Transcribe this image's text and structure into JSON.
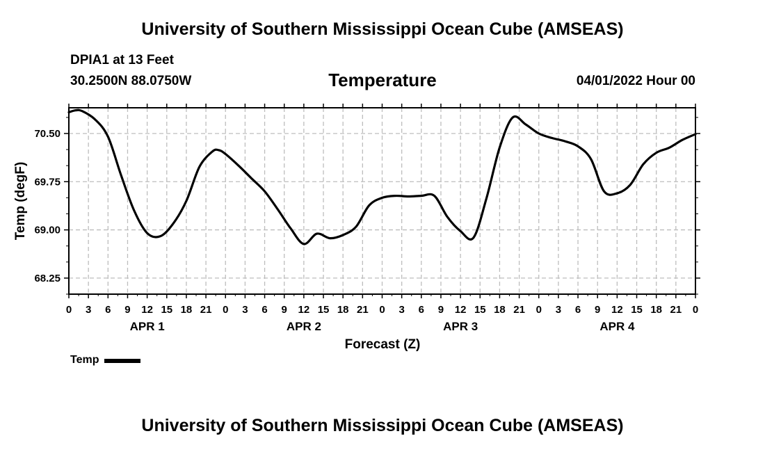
{
  "header": {
    "title": "University of Southern Mississippi Ocean Cube (AMSEAS)",
    "station": "DPIA1 at 13 Feet",
    "coords": "30.2500N  88.0750W",
    "datetime": "04/01/2022 Hour 00"
  },
  "footer": {
    "title": "University of Southern Mississippi Ocean Cube (AMSEAS)"
  },
  "legend": {
    "label": "Temp"
  },
  "chart_data": {
    "type": "line",
    "title": "Temperature",
    "xlabel": "Forecast (Z)",
    "ylabel": "Temp (degF)",
    "ylim": [
      68.0,
      70.9
    ],
    "xlim": [
      0,
      96
    ],
    "yticks": [
      68.25,
      69.0,
      69.75,
      70.5
    ],
    "ytick_labels": [
      "68.25",
      "69.00",
      "69.75",
      "70.50"
    ],
    "xticks": [
      0,
      3,
      6,
      9,
      12,
      15,
      18,
      21,
      24,
      27,
      30,
      33,
      36,
      39,
      42,
      45,
      48,
      51,
      54,
      57,
      60,
      63,
      66,
      69,
      72,
      75,
      78,
      81,
      84,
      87,
      90,
      93,
      96
    ],
    "xtick_labels": [
      "0",
      "3",
      "6",
      "9",
      "12",
      "15",
      "18",
      "21",
      "0",
      "3",
      "6",
      "9",
      "12",
      "15",
      "18",
      "21",
      "0",
      "3",
      "6",
      "9",
      "12",
      "15",
      "18",
      "21",
      "0",
      "3",
      "6",
      "9",
      "12",
      "15",
      "18",
      "21",
      "0"
    ],
    "day_labels": [
      {
        "label": "APR 1",
        "x": 12
      },
      {
        "label": "APR 2",
        "x": 36
      },
      {
        "label": "APR 3",
        "x": 60
      },
      {
        "label": "APR 4",
        "x": 84
      }
    ],
    "grid": true,
    "color": "#000000",
    "series": [
      {
        "name": "Temp",
        "x": [
          0,
          1,
          2,
          4,
          6,
          8,
          10,
          12,
          14,
          16,
          18,
          20,
          22,
          23,
          24,
          26,
          28,
          30,
          32,
          34,
          36,
          38,
          40,
          42,
          44,
          46,
          48,
          50,
          52,
          54,
          56,
          58,
          60,
          62,
          64,
          66,
          68,
          70,
          72,
          74,
          76,
          78,
          80,
          82,
          84,
          86,
          88,
          90,
          92,
          94,
          96
        ],
        "values": [
          70.83,
          70.86,
          70.85,
          70.72,
          70.45,
          69.85,
          69.3,
          68.95,
          68.9,
          69.1,
          69.45,
          69.98,
          70.22,
          70.24,
          70.18,
          70.0,
          69.8,
          69.6,
          69.32,
          69.02,
          68.78,
          68.94,
          68.87,
          68.92,
          69.05,
          69.38,
          69.5,
          69.53,
          69.52,
          69.53,
          69.53,
          69.2,
          68.98,
          68.88,
          69.5,
          70.28,
          70.75,
          70.64,
          70.5,
          70.43,
          70.38,
          70.3,
          70.1,
          69.6,
          69.57,
          69.7,
          70.02,
          70.2,
          70.28,
          70.4,
          70.49
        ]
      }
    ]
  }
}
